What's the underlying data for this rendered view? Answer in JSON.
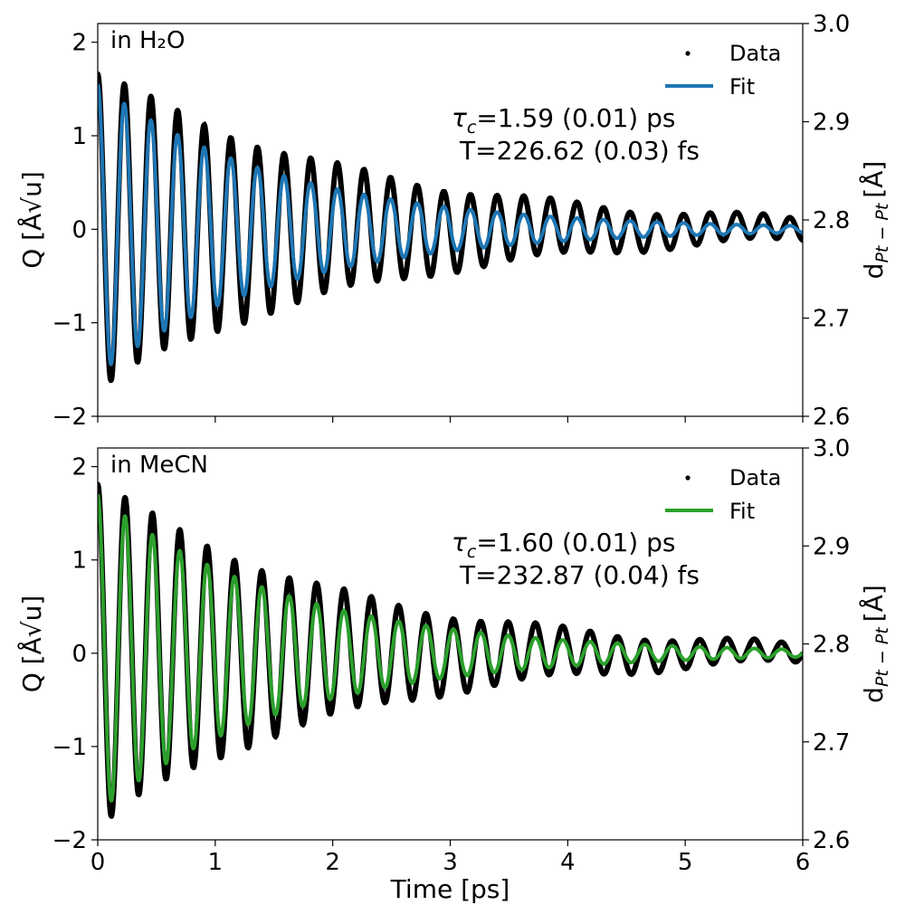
{
  "chart_data": [
    {
      "type": "line",
      "panel_label": "in H₂O",
      "ylabel": "Q [Å√u]",
      "ylabel_right": "d",
      "ylabel_right_sub": "Pt − Pt",
      "ylabel_right_unit": "[Å]",
      "xlim": [
        0,
        6
      ],
      "ylim": [
        -2,
        2.2
      ],
      "ylim_right": [
        2.6,
        3.0
      ],
      "x_ticks": [
        0,
        1,
        2,
        3,
        4,
        5,
        6
      ],
      "y_ticks": [
        -2,
        -1,
        0,
        1,
        2
      ],
      "y_tick_labels": [
        "−2",
        "−1",
        "0",
        "1",
        "2"
      ],
      "y_right_ticks": [
        2.6,
        2.7,
        2.8,
        2.9,
        3.0
      ],
      "y_right_tick_labels": [
        "2.6",
        "2.7",
        "2.8",
        "2.9",
        "3.0"
      ],
      "annotation_tau": "=1.59 (0.01) ps",
      "annotation_T": "T=226.62 (0.03) fs",
      "tau_symbol": "τ",
      "tau_sub": "c",
      "series": [
        {
          "name": "Data",
          "style": "dots",
          "color": "#000000"
        },
        {
          "name": "Fit",
          "style": "line",
          "color": "#1f77b4"
        }
      ],
      "model": {
        "amplitude": 1.55,
        "tau_ps": 1.59,
        "period_ps": 0.22662,
        "data_amplitude": 1.7,
        "data_tau_ps": 2.2
      }
    },
    {
      "type": "line",
      "panel_label": "in MeCN",
      "ylabel": "Q [Å√u]",
      "ylabel_right": "d",
      "ylabel_right_sub": "Pt − Pt",
      "ylabel_right_unit": "[Å]",
      "xlabel": "Time [ps]",
      "xlim": [
        0,
        6
      ],
      "ylim": [
        -2,
        2.2
      ],
      "ylim_right": [
        2.6,
        3.0
      ],
      "x_ticks": [
        0,
        1,
        2,
        3,
        4,
        5,
        6
      ],
      "x_tick_labels": [
        "0",
        "1",
        "2",
        "3",
        "4",
        "5",
        "6"
      ],
      "y_ticks": [
        -2,
        -1,
        0,
        1,
        2
      ],
      "y_tick_labels": [
        "−2",
        "−1",
        "0",
        "1",
        "2"
      ],
      "y_right_ticks": [
        2.6,
        2.7,
        2.8,
        2.9,
        3.0
      ],
      "y_right_tick_labels": [
        "2.6",
        "2.7",
        "2.8",
        "2.9",
        "3.0"
      ],
      "annotation_tau": "=1.60 (0.01) ps",
      "annotation_T": "T=232.87 (0.04) fs",
      "tau_symbol": "τ",
      "tau_sub": "c",
      "series": [
        {
          "name": "Data",
          "style": "dots",
          "color": "#000000"
        },
        {
          "name": "Fit",
          "style": "line",
          "color": "#2ca02c"
        }
      ],
      "model": {
        "amplitude": 1.7,
        "tau_ps": 1.6,
        "period_ps": 0.23287,
        "data_amplitude": 1.85,
        "data_tau_ps": 2.0
      }
    }
  ]
}
